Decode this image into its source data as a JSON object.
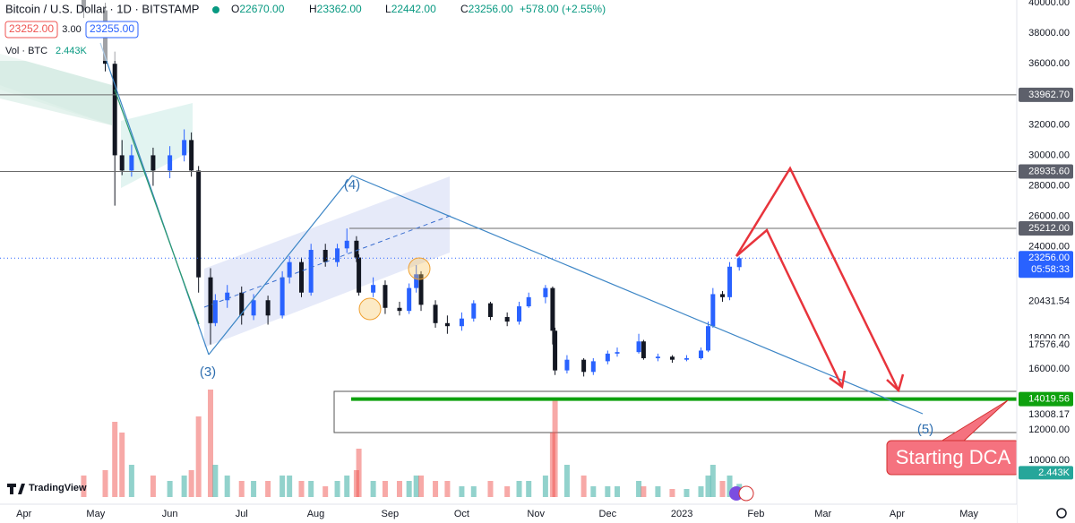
{
  "chart_data": {
    "type": "candlestick",
    "title": "Bitcoin / U.S. Dollar · 1D · BITSTAMP",
    "legend": [
      {
        "key": "O",
        "label": "22670.00"
      },
      {
        "key": "H",
        "label": "23362.00"
      },
      {
        "key": "L",
        "label": "22442.00"
      },
      {
        "key": "C",
        "label": "23256.00"
      }
    ],
    "change": "+578.00 (+2.55%)",
    "buttons": [
      "23252.00",
      "3.00",
      "23255.00"
    ],
    "volume_title": "Vol · BTC",
    "volume_value": "2.443K",
    "x": [
      25,
      34,
      38,
      41,
      45,
      54,
      61,
      67,
      70,
      73,
      78,
      80,
      85,
      91,
      96,
      102,
      108,
      111,
      116,
      120,
      126,
      131,
      135,
      139,
      140,
      146,
      151,
      157,
      161,
      164,
      166,
      172,
      177,
      183,
      188,
      195,
      202,
      207,
      211,
      218,
      221,
      222,
      227,
      234,
      238,
      244,
      248,
      257,
      259,
      265,
      271,
      277,
      283,
      286,
      288,
      292,
      295,
      299
    ],
    "open": [
      40500,
      39500,
      36000,
      30000,
      29000,
      30000,
      29000,
      30000,
      31000,
      29000,
      22000,
      19000,
      20500,
      21000,
      19500,
      20500,
      19500,
      22000,
      23000,
      21000,
      23800,
      23000,
      23900,
      24400,
      23300,
      21000,
      21500,
      20000,
      19800,
      21300,
      22200,
      20200,
      19000,
      18800,
      19300,
      20300,
      19400,
      19100,
      20100,
      20700,
      21300,
      18500,
      15900,
      16600,
      15800,
      16500,
      17000,
      17100,
      17800,
      16700,
      16800,
      16600,
      16700,
      17200,
      18800,
      20900,
      20700,
      22670
    ],
    "high": [
      40900,
      40000,
      36800,
      31000,
      30700,
      30500,
      30600,
      31700,
      31500,
      29300,
      22600,
      20900,
      21500,
      21400,
      20900,
      20800,
      22400,
      23400,
      23300,
      24200,
      24200,
      24200,
      25200,
      24700,
      23500,
      22000,
      21800,
      20400,
      21600,
      22800,
      22400,
      20500,
      19500,
      19700,
      20500,
      20400,
      19700,
      20400,
      21000,
      21500,
      21400,
      18700,
      16900,
      16700,
      16700,
      17200,
      17400,
      18300,
      17900,
      17000,
      16900,
      16900,
      17400,
      19100,
      21300,
      21100,
      23000,
      23362
    ],
    "low": [
      39000,
      35500,
      26700,
      28700,
      28600,
      28000,
      28500,
      29600,
      28600,
      21000,
      17600,
      18800,
      20000,
      18900,
      19200,
      18900,
      19300,
      21600,
      20700,
      20800,
      22700,
      22700,
      23600,
      23000,
      20800,
      20700,
      19600,
      19500,
      19600,
      21000,
      19800,
      18700,
      18300,
      18500,
      19100,
      19200,
      18800,
      18900,
      20000,
      20300,
      17600,
      15600,
      15700,
      15500,
      15600,
      16300,
      16800,
      17000,
      16600,
      16500,
      16400,
      16500,
      16600,
      17100,
      18700,
      20400,
      20500,
      22442
    ],
    "close": [
      39500,
      36000,
      30000,
      29000,
      30000,
      29000,
      30000,
      31000,
      29000,
      22000,
      19000,
      20500,
      21000,
      19500,
      20500,
      19500,
      22000,
      23000,
      21000,
      23800,
      23000,
      23900,
      24400,
      23300,
      21000,
      21500,
      20000,
      19800,
      21300,
      22200,
      20200,
      19000,
      18800,
      19300,
      20300,
      19400,
      19100,
      20100,
      20700,
      21300,
      18500,
      15900,
      16600,
      15800,
      16500,
      17000,
      17100,
      17800,
      16700,
      16800,
      16600,
      16700,
      17200,
      18800,
      20900,
      20700,
      22700,
      23256
    ],
    "volume": [
      4,
      5,
      14,
      12,
      6,
      4,
      3,
      4,
      5,
      15,
      20,
      6,
      4,
      3,
      3,
      3,
      4,
      4,
      3,
      3,
      2,
      3,
      4,
      5,
      9,
      3,
      3,
      3,
      3,
      4,
      4,
      3,
      3,
      2,
      2,
      3,
      2,
      3,
      3,
      4,
      12,
      18,
      6,
      4,
      2,
      2,
      2,
      3,
      2,
      2,
      1.5,
      1.5,
      2,
      4,
      6,
      3,
      4,
      2.443
    ],
    "volume_ylim": [
      0,
      25
    ],
    "colors": {
      "up": "#2962ff",
      "down": "#131722",
      "volume_up": "#26a69a",
      "volume_down": "#ef5350"
    },
    "xlim": [
      -10,
      415
    ],
    "xticks": [
      {
        "value": 0,
        "label": "Apr"
      },
      {
        "value": 30,
        "label": "May"
      },
      {
        "value": 61,
        "label": "Jun"
      },
      {
        "value": 91,
        "label": "Jul"
      },
      {
        "value": 122,
        "label": "Aug"
      },
      {
        "value": 153,
        "label": "Sep"
      },
      {
        "value": 183,
        "label": "Oct"
      },
      {
        "value": 214,
        "label": "Nov"
      },
      {
        "value": 244,
        "label": "Dec"
      },
      {
        "value": 275,
        "label": "2023"
      },
      {
        "value": 306,
        "label": "Feb"
      },
      {
        "value": 334,
        "label": "Mar"
      },
      {
        "value": 365,
        "label": "Apr"
      },
      {
        "value": 395,
        "label": "May"
      }
    ],
    "ylim": [
      7600,
      40180
    ],
    "yticks": [
      {
        "value": 40000,
        "label": "40000.00"
      },
      {
        "value": 38000,
        "label": "38000.00"
      },
      {
        "value": 36000,
        "label": "36000.00"
      },
      {
        "value": 32000,
        "label": "32000.00"
      },
      {
        "value": 30000,
        "label": "30000.00"
      },
      {
        "value": 28000,
        "label": "28000.00"
      },
      {
        "value": 26000,
        "label": "26000.00"
      },
      {
        "value": 24000,
        "label": "24000.00"
      },
      {
        "value": 18000,
        "label": "18000.00"
      },
      {
        "value": 16000,
        "label": "16000.00"
      },
      {
        "value": 12000,
        "label": "12000.00"
      },
      {
        "value": 10000,
        "label": "10000.00"
      }
    ],
    "levels": [
      {
        "value": 33962.7,
        "label": "33962.70",
        "color": "#6b6b6b"
      },
      {
        "value": 28935.6,
        "label": "28935.60",
        "color": "#6b6b6b"
      },
      {
        "value": 25212,
        "label": "25212.00",
        "color": "#6b6b6b"
      },
      {
        "value": 14019.56,
        "label": "14019.56",
        "color": "#0ea10e"
      }
    ],
    "last_price": {
      "value": 23256,
      "label": "23256.00",
      "countdown": "05:58:33",
      "color": "#2962ff"
    },
    "price_labels": [
      {
        "value": 20431.54,
        "label": "20431.54"
      },
      {
        "value": 17576.4,
        "label": "17576.40"
      },
      {
        "value": 13008.17,
        "label": "13008.17"
      }
    ],
    "annotations": {
      "wave3": "(3)",
      "wave4": "(4)",
      "wave5": "(5)",
      "callout": "Starting DCA"
    },
    "logo": "TradingView"
  }
}
